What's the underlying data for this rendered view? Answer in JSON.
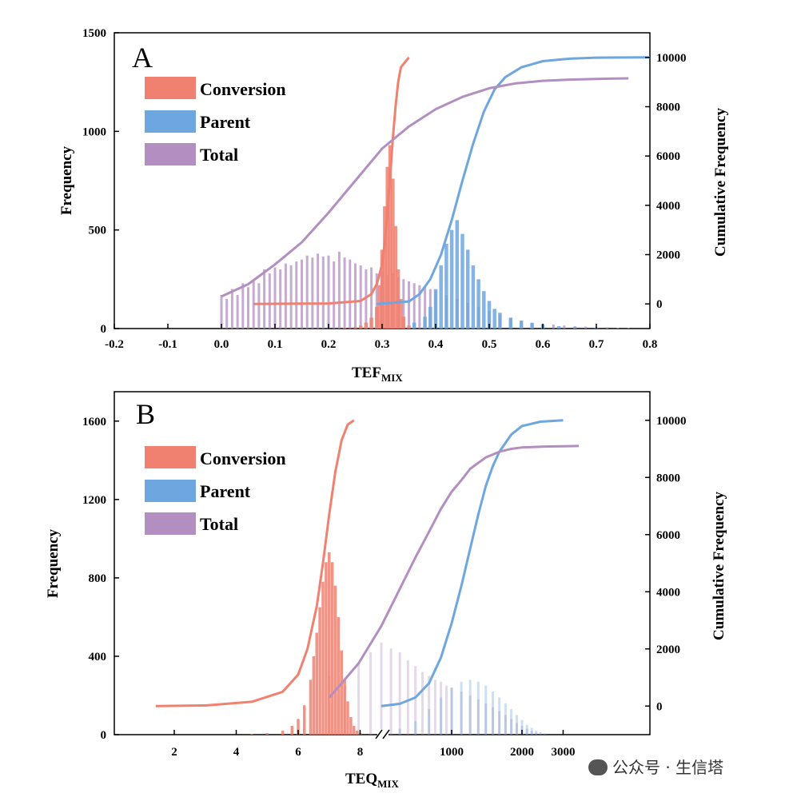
{
  "colors": {
    "conversion": "#f08070",
    "parent": "#6ea6e0",
    "total": "#b28fc0"
  },
  "watermark": "公众号 · 生信塔",
  "chart_data": [
    {
      "panel": "A",
      "type": "bar",
      "xlabel_main": "TEF",
      "xlabel_sub": "MIX",
      "ylabel": "Frequency",
      "y2label": "Cumulative Frequency",
      "xlim": [
        -0.2,
        0.8
      ],
      "ylim": [
        0,
        1500
      ],
      "y2lim": [
        -1000,
        11000
      ],
      "xticks": [
        "-0.2",
        "-0.1",
        "0.0",
        "0.1",
        "0.2",
        "0.3",
        "0.4",
        "0.5",
        "0.6",
        "0.7",
        "0.8"
      ],
      "yticks": [
        "0",
        "500",
        "1000",
        "1500"
      ],
      "y2ticks": [
        "0",
        "2000",
        "4000",
        "6000",
        "8000",
        "10000"
      ],
      "legend": [
        "Conversion",
        "Parent",
        "Total"
      ],
      "series": [
        {
          "name": "Conversion",
          "hist_x": [
            0.23,
            0.25,
            0.26,
            0.27,
            0.28,
            0.29,
            0.295,
            0.3,
            0.305,
            0.31,
            0.315,
            0.32,
            0.325,
            0.33,
            0.335,
            0.34,
            0.35
          ],
          "hist_y": [
            3,
            8,
            15,
            30,
            55,
            110,
            220,
            400,
            620,
            820,
            930,
            760,
            520,
            300,
            150,
            60,
            15
          ],
          "cum_x": [
            0.06,
            0.2,
            0.26,
            0.28,
            0.29,
            0.3,
            0.305,
            0.31,
            0.315,
            0.32,
            0.325,
            0.33,
            0.335,
            0.35
          ],
          "cum_y": [
            0,
            20,
            120,
            400,
            800,
            1600,
            2500,
            3800,
            5200,
            6700,
            8000,
            9000,
            9600,
            10000
          ]
        },
        {
          "name": "Parent",
          "hist_x": [
            0.34,
            0.36,
            0.38,
            0.39,
            0.4,
            0.41,
            0.42,
            0.43,
            0.44,
            0.45,
            0.46,
            0.47,
            0.48,
            0.49,
            0.5,
            0.51,
            0.52,
            0.54,
            0.56,
            0.58,
            0.6,
            0.63,
            0.66,
            0.7
          ],
          "hist_y": [
            10,
            30,
            60,
            110,
            200,
            320,
            430,
            500,
            550,
            480,
            400,
            320,
            250,
            190,
            140,
            100,
            80,
            55,
            40,
            28,
            20,
            12,
            8,
            4
          ],
          "cum_x": [
            0.29,
            0.35,
            0.37,
            0.39,
            0.41,
            0.43,
            0.45,
            0.47,
            0.49,
            0.51,
            0.53,
            0.56,
            0.6,
            0.65,
            0.7,
            0.8
          ],
          "cum_y": [
            0,
            100,
            400,
            1000,
            2000,
            3400,
            5000,
            6500,
            7800,
            8700,
            9200,
            9600,
            9850,
            9950,
            9990,
            10000
          ]
        },
        {
          "name": "Total",
          "hist_x": [
            0.0,
            0.01,
            0.02,
            0.03,
            0.04,
            0.05,
            0.06,
            0.07,
            0.08,
            0.09,
            0.1,
            0.11,
            0.12,
            0.13,
            0.14,
            0.15,
            0.16,
            0.17,
            0.18,
            0.19,
            0.2,
            0.21,
            0.22,
            0.23,
            0.24,
            0.25,
            0.26,
            0.27,
            0.28,
            0.29,
            0.3,
            0.31,
            0.32,
            0.33,
            0.34,
            0.35,
            0.36,
            0.37,
            0.38,
            0.39,
            0.4,
            0.42,
            0.44,
            0.46,
            0.48,
            0.5,
            0.52,
            0.54,
            0.56,
            0.58,
            0.6,
            0.62,
            0.64,
            0.66,
            0.68,
            0.7,
            0.72,
            0.74,
            0.76
          ],
          "hist_y": [
            170,
            150,
            200,
            170,
            230,
            210,
            250,
            230,
            300,
            280,
            310,
            300,
            330,
            320,
            340,
            350,
            370,
            360,
            380,
            365,
            370,
            340,
            390,
            360,
            350,
            330,
            320,
            300,
            310,
            280,
            290,
            270,
            280,
            260,
            250,
            240,
            230,
            220,
            210,
            200,
            190,
            170,
            150,
            130,
            110,
            90,
            70,
            55,
            40,
            30,
            25,
            20,
            15,
            12,
            10,
            8,
            6,
            4,
            3
          ],
          "cum_x": [
            0.0,
            0.05,
            0.1,
            0.15,
            0.2,
            0.25,
            0.3,
            0.35,
            0.4,
            0.45,
            0.5,
            0.55,
            0.6,
            0.65,
            0.7,
            0.76
          ],
          "cum_y": [
            300,
            800,
            1600,
            2500,
            3700,
            5000,
            6300,
            7200,
            7900,
            8400,
            8750,
            8950,
            9050,
            9100,
            9130,
            9150
          ]
        }
      ]
    },
    {
      "panel": "B",
      "type": "bar",
      "xlabel_main": "TEQ",
      "xlabel_sub": "MIX",
      "ylabel": "Frequency",
      "y2label": "Cumulative Frequency",
      "ylim": [
        0,
        1750
      ],
      "y2lim": [
        -1000,
        11000
      ],
      "x_axis_break": true,
      "xticks_left": [
        "2",
        "4",
        "6",
        "8"
      ],
      "xticks_right": [
        "1000",
        "2000",
        "3000"
      ],
      "yticks": [
        "0",
        "400",
        "800",
        "1200",
        "1600"
      ],
      "y2ticks": [
        "0",
        "2000",
        "4000",
        "6000",
        "8000",
        "10000"
      ],
      "legend": [
        "Conversion",
        "Parent",
        "Total"
      ],
      "series": [
        {
          "name": "Conversion",
          "x_units": "left axis segment",
          "hist_x": [
            4.5,
            5.0,
            5.5,
            5.8,
            6.0,
            6.2,
            6.4,
            6.5,
            6.6,
            6.7,
            6.8,
            6.9,
            7.0,
            7.1,
            7.2,
            7.3,
            7.4,
            7.5,
            7.6,
            7.7,
            7.8,
            7.9,
            8.0
          ],
          "hist_y": [
            3,
            8,
            20,
            45,
            80,
            150,
            280,
            400,
            520,
            650,
            780,
            880,
            930,
            880,
            760,
            600,
            430,
            280,
            170,
            90,
            45,
            20,
            8
          ],
          "cum_x": [
            1.4,
            3.0,
            4.5,
            5.5,
            6.0,
            6.3,
            6.6,
            6.8,
            7.0,
            7.2,
            7.4,
            7.6,
            7.8
          ],
          "cum_y": [
            0,
            20,
            150,
            500,
            1100,
            2000,
            3500,
            5000,
            6700,
            8200,
            9300,
            9850,
            10000
          ]
        },
        {
          "name": "Parent",
          "x_units": "right axis segment",
          "hist_x": [
            500,
            600,
            700,
            800,
            900,
            1000,
            1100,
            1200,
            1300,
            1400,
            1500,
            1600,
            1700,
            1800,
            1900,
            2000,
            2100,
            2200,
            2300,
            2400,
            2500
          ],
          "hist_y": [
            10,
            30,
            70,
            130,
            190,
            240,
            270,
            280,
            270,
            250,
            220,
            190,
            160,
            130,
            100,
            75,
            50,
            35,
            20,
            12,
            6
          ],
          "cum_x": [
            500,
            600,
            700,
            800,
            900,
            1000,
            1100,
            1200,
            1300,
            1400,
            1500,
            1600,
            1800,
            2000,
            2400,
            3000
          ],
          "cum_y": [
            0,
            80,
            300,
            800,
            1700,
            2900,
            4200,
            5500,
            6700,
            7700,
            8400,
            8900,
            9500,
            9800,
            9950,
            10000
          ]
        },
        {
          "name": "Total",
          "x_units": "right axis segment",
          "hist_x": [
            300,
            350,
            400,
            450,
            500,
            550,
            600,
            650,
            700,
            750,
            800,
            850,
            900,
            950,
            1000,
            1100,
            1200,
            1300,
            1400,
            1500,
            1600,
            1700,
            1800,
            1900,
            2000,
            2100,
            2200,
            2300
          ],
          "hist_y": [
            300,
            250,
            360,
            420,
            470,
            440,
            420,
            380,
            350,
            320,
            300,
            280,
            270,
            250,
            240,
            220,
            200,
            180,
            160,
            140,
            120,
            100,
            80,
            60,
            45,
            30,
            20,
            10
          ],
          "cum_x": [
            300,
            400,
            500,
            600,
            700,
            800,
            900,
            1000,
            1100,
            1200,
            1400,
            1600,
            1800,
            2000,
            2500,
            3000,
            3500
          ],
          "cum_y": [
            300,
            1500,
            2800,
            4100,
            5200,
            6100,
            6900,
            7500,
            7900,
            8300,
            8700,
            8900,
            9000,
            9050,
            9080,
            9090,
            9100
          ]
        }
      ]
    }
  ]
}
